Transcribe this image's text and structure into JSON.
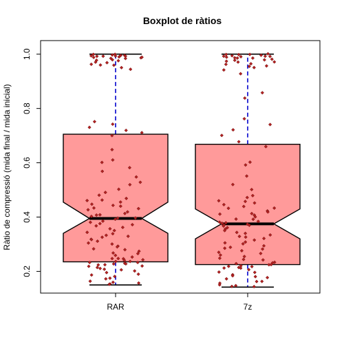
{
  "chart_data": {
    "type": "boxplot",
    "title": "Boxplot de ràtios",
    "xlabel": "",
    "ylabel": "Ràtio de compressió (mida final / mida inicial)",
    "ylim": [
      0.12,
      1.05
    ],
    "yticks": [
      "0.2",
      "0.4",
      "0.6",
      "0.8",
      "1.0"
    ],
    "notched": true,
    "grid": false,
    "colors": {
      "box_fill": "#ff9a9a",
      "box_border": "#000000",
      "median": "#000000",
      "whisker": "#0000cc",
      "points": "#b22222"
    },
    "boxes": [
      {
        "name": "RAR",
        "min": 0.15,
        "q1": 0.235,
        "median": 0.395,
        "q3": 0.705,
        "max": 1.0,
        "notch_low": 0.34,
        "notch_high": 0.455
      },
      {
        "name": "7z",
        "min": 0.142,
        "q1": 0.225,
        "median": 0.375,
        "q3": 0.668,
        "max": 1.0,
        "notch_low": 0.32,
        "notch_high": 0.43
      }
    ],
    "points": [
      {
        "group": "RAR",
        "values": [
          1.0,
          0.998,
          0.997,
          0.996,
          0.995,
          0.994,
          0.993,
          0.992,
          0.991,
          0.99,
          0.99,
          0.989,
          0.988,
          0.987,
          0.985,
          0.983,
          0.98,
          0.978,
          0.975,
          0.972,
          0.968,
          0.965,
          0.962,
          0.958,
          0.95,
          0.945,
          0.75,
          0.74,
          0.73,
          0.72,
          0.71,
          0.7,
          0.65,
          0.61,
          0.6,
          0.58,
          0.57,
          0.55,
          0.53,
          0.52,
          0.5,
          0.49,
          0.48,
          0.47,
          0.465,
          0.46,
          0.455,
          0.45,
          0.445,
          0.44,
          0.435,
          0.43,
          0.425,
          0.42,
          0.415,
          0.41,
          0.405,
          0.4,
          0.398,
          0.395,
          0.39,
          0.385,
          0.38,
          0.375,
          0.37,
          0.365,
          0.36,
          0.355,
          0.35,
          0.345,
          0.34,
          0.335,
          0.33,
          0.325,
          0.32,
          0.315,
          0.31,
          0.305,
          0.3,
          0.295,
          0.29,
          0.285,
          0.28,
          0.275,
          0.27,
          0.265,
          0.26,
          0.255,
          0.25,
          0.248,
          0.245,
          0.243,
          0.24,
          0.238,
          0.236,
          0.234,
          0.232,
          0.23,
          0.228,
          0.226,
          0.224,
          0.222,
          0.22,
          0.218,
          0.215,
          0.212,
          0.21,
          0.205,
          0.2,
          0.195,
          0.19,
          0.185,
          0.18,
          0.175,
          0.17,
          0.165,
          0.16,
          0.155,
          0.152,
          0.15
        ]
      },
      {
        "group": "7z",
        "values": [
          1.0,
          0.999,
          0.998,
          0.997,
          0.996,
          0.995,
          0.994,
          0.993,
          0.992,
          0.991,
          0.99,
          0.988,
          0.986,
          0.984,
          0.982,
          0.98,
          0.978,
          0.975,
          0.972,
          0.97,
          0.965,
          0.962,
          0.958,
          0.955,
          0.95,
          0.94,
          0.93,
          0.86,
          0.84,
          0.76,
          0.74,
          0.72,
          0.7,
          0.68,
          0.66,
          0.6,
          0.59,
          0.55,
          0.52,
          0.5,
          0.48,
          0.47,
          0.46,
          0.455,
          0.45,
          0.445,
          0.44,
          0.435,
          0.43,
          0.425,
          0.42,
          0.415,
          0.41,
          0.405,
          0.4,
          0.395,
          0.39,
          0.385,
          0.38,
          0.378,
          0.376,
          0.374,
          0.372,
          0.37,
          0.365,
          0.36,
          0.355,
          0.35,
          0.345,
          0.34,
          0.335,
          0.33,
          0.325,
          0.32,
          0.315,
          0.31,
          0.305,
          0.3,
          0.295,
          0.29,
          0.285,
          0.28,
          0.275,
          0.27,
          0.265,
          0.26,
          0.255,
          0.25,
          0.245,
          0.24,
          0.235,
          0.23,
          0.228,
          0.226,
          0.224,
          0.222,
          0.22,
          0.218,
          0.215,
          0.212,
          0.21,
          0.205,
          0.2,
          0.195,
          0.19,
          0.185,
          0.18,
          0.175,
          0.17,
          0.165,
          0.16,
          0.155,
          0.15,
          0.148,
          0.145,
          0.142
        ]
      }
    ]
  }
}
